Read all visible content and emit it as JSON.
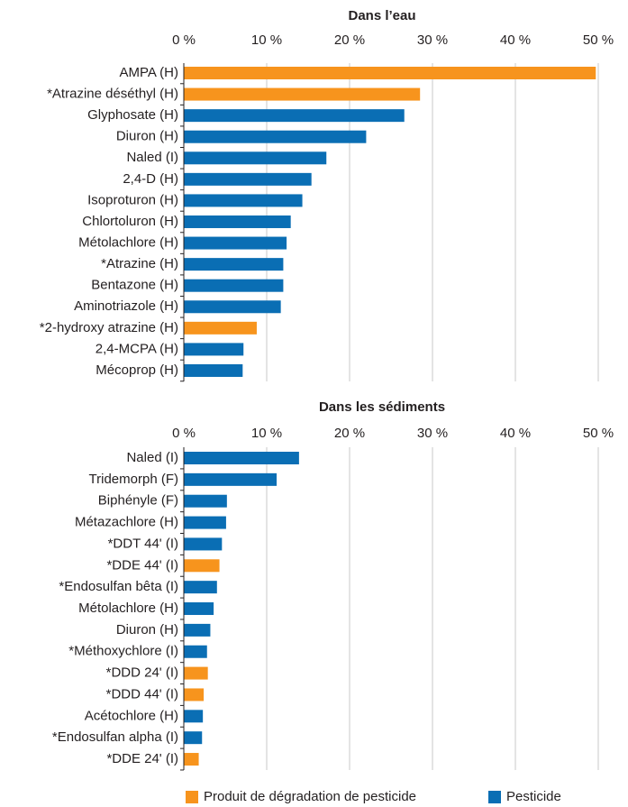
{
  "chart_data": [
    {
      "type": "bar",
      "orientation": "horizontal",
      "title": "Dans l’eau",
      "categories": [
        "AMPA (H)",
        "*Atrazine déséthyl (H)",
        "Glyphosate (H)",
        "Diuron (H)",
        "Naled (I)",
        "2,4-D (H)",
        "Isoproturon (H)",
        "Chlortoluron (H)",
        "Métolachlore (H)",
        "*Atrazine (H)",
        "Bentazone (H)",
        "Aminotriazole (H)",
        "*2-hydroxy atrazine (H)",
        "2,4-MCPA (H)",
        "Mécoprop (H)"
      ],
      "values": [
        49.7,
        28.5,
        26.6,
        22.0,
        17.2,
        15.4,
        14.3,
        12.9,
        12.4,
        12.0,
        12.0,
        11.7,
        8.8,
        7.2,
        7.1
      ],
      "colors": [
        "#f7941d",
        "#f7941d",
        "#0a6eb4",
        "#0a6eb4",
        "#0a6eb4",
        "#0a6eb4",
        "#0a6eb4",
        "#0a6eb4",
        "#0a6eb4",
        "#0a6eb4",
        "#0a6eb4",
        "#0a6eb4",
        "#f7941d",
        "#0a6eb4",
        "#0a6eb4"
      ],
      "xlim": [
        0,
        50
      ],
      "xticks": [
        {
          "value": 0,
          "label": "0 %"
        },
        {
          "value": 10,
          "label": "10 %"
        },
        {
          "value": 20,
          "label": "20 %"
        },
        {
          "value": 30,
          "label": "30 %"
        },
        {
          "value": 40,
          "label": "40 %"
        },
        {
          "value": 50,
          "label": "50 %"
        }
      ],
      "grid": true
    },
    {
      "type": "bar",
      "orientation": "horizontal",
      "title": "Dans les sédiments",
      "categories": [
        "Naled (I)",
        "Tridemorph (F)",
        "Biphényle (F)",
        "Métazachlore (H)",
        "*DDT 44' (I)",
        "*DDE 44' (I)",
        "*Endosulfan bêta (I)",
        "Métolachlore (H)",
        "Diuron (H)",
        "*Méthoxychlore (I)",
        "*DDD 24' (I)",
        "*DDD 44' (I)",
        "Acétochlore (H)",
        "*Endosulfan alpha (I)",
        "*DDE 24' (I)"
      ],
      "values": [
        13.9,
        11.2,
        5.2,
        5.1,
        4.6,
        4.3,
        4.0,
        3.6,
        3.2,
        2.8,
        2.9,
        2.4,
        2.3,
        2.2,
        1.8
      ],
      "colors": [
        "#0a6eb4",
        "#0a6eb4",
        "#0a6eb4",
        "#0a6eb4",
        "#0a6eb4",
        "#f7941d",
        "#0a6eb4",
        "#0a6eb4",
        "#0a6eb4",
        "#0a6eb4",
        "#f7941d",
        "#f7941d",
        "#0a6eb4",
        "#0a6eb4",
        "#f7941d"
      ],
      "xlim": [
        0,
        50
      ],
      "xticks": [
        {
          "value": 0,
          "label": "0 %"
        },
        {
          "value": 10,
          "label": "10 %"
        },
        {
          "value": 20,
          "label": "20 %"
        },
        {
          "value": 30,
          "label": "30 %"
        },
        {
          "value": 40,
          "label": "40 %"
        },
        {
          "value": 50,
          "label": "50 %"
        }
      ],
      "grid": true
    }
  ],
  "legend": [
    {
      "name": "Produit de dégradation de pesticide",
      "color": "#f7941d"
    },
    {
      "name": "Pesticide",
      "color": "#0a6eb4"
    }
  ]
}
